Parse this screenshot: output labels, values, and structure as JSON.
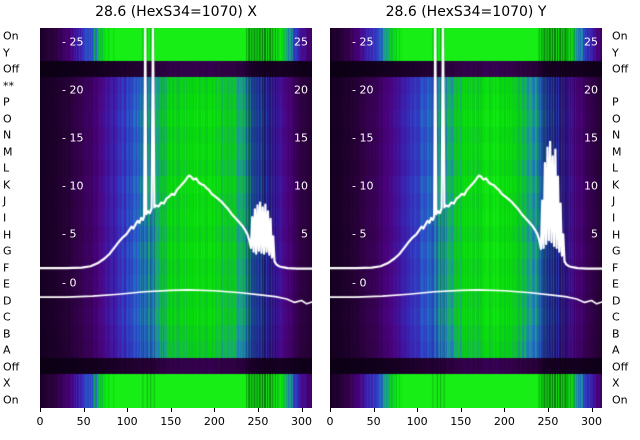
{
  "figure": {
    "bg": "#ffffff",
    "row_labels_left": [
      "On",
      "Y",
      "Off",
      "**",
      "P",
      "O",
      "N",
      "M",
      "L",
      "K",
      "J",
      "I",
      "H",
      "G",
      "F",
      "E",
      "D",
      "C",
      "B",
      "A",
      "Off",
      "X",
      "On"
    ],
    "row_labels_right": [
      "On",
      "Y",
      "Off",
      "",
      "P",
      "O",
      "N",
      "M",
      "L",
      "K",
      "J",
      "I",
      "H",
      "G",
      "F",
      "E",
      "D",
      "C",
      "B",
      "A",
      "Off",
      "X",
      "On"
    ]
  },
  "axis": {
    "x_ticks": [
      0,
      50,
      100,
      150,
      200,
      250,
      300
    ],
    "x_span": 312,
    "y_ticks_left": [
      25,
      20,
      15,
      10,
      5,
      0
    ],
    "y_ticks_right": [
      25,
      20,
      15,
      10,
      5
    ],
    "y_top": 26.4,
    "y_bottom": -13.0,
    "tick_prefix": "- "
  },
  "style": {
    "curve_color": "#ffffff",
    "text_color": "#000000",
    "colormap": [
      [
        0,
        "#0a0012"
      ],
      [
        0.1,
        "#2d0140"
      ],
      [
        0.2,
        "#4a027e"
      ],
      [
        0.3,
        "#3c1fae"
      ],
      [
        0.42,
        "#2b49c8"
      ],
      [
        0.52,
        "#2277c0"
      ],
      [
        0.6,
        "#18a878"
      ],
      [
        0.68,
        "#10c030"
      ],
      [
        0.78,
        "#06d80a"
      ],
      [
        1,
        "#16ee16"
      ]
    ],
    "bright_rows": [
      0,
      1,
      21,
      22
    ],
    "dark_rows": [
      2,
      20
    ],
    "row_factors": [
      1,
      1,
      1,
      0.96,
      1.0,
      1.04,
      0.98,
      1.02,
      0.97,
      1.05,
      1.0,
      1.03,
      0.98,
      1.04,
      0.99,
      1.02,
      0.96,
      1.0,
      0.94,
      0.9,
      1,
      1,
      1
    ],
    "intensity_profile": [
      [
        0,
        0.03
      ],
      [
        15,
        0.05
      ],
      [
        30,
        0.08
      ],
      [
        45,
        0.12
      ],
      [
        60,
        0.17
      ],
      [
        75,
        0.24
      ],
      [
        90,
        0.32
      ],
      [
        105,
        0.42
      ],
      [
        120,
        0.52
      ],
      [
        135,
        0.62
      ],
      [
        150,
        0.72
      ],
      [
        165,
        0.8
      ],
      [
        180,
        0.84
      ],
      [
        195,
        0.82
      ],
      [
        210,
        0.74
      ],
      [
        225,
        0.64
      ],
      [
        240,
        0.52
      ],
      [
        255,
        0.4
      ],
      [
        268,
        0.3
      ],
      [
        280,
        0.22
      ],
      [
        292,
        0.15
      ],
      [
        302,
        0.1
      ],
      [
        312,
        0.07
      ]
    ]
  },
  "chart_data": [
    {
      "type": "heatmap+line",
      "title": "28.6 (HexS34=1070) X",
      "xlabel_ticks": [
        0,
        50,
        100,
        150,
        200,
        250,
        300
      ],
      "ylim": [
        -13.0,
        26.4
      ],
      "profile": [
        [
          0,
          1.5
        ],
        [
          30,
          1.5
        ],
        [
          48,
          1.55
        ],
        [
          58,
          1.7
        ],
        [
          66,
          2.0
        ],
        [
          74,
          2.5
        ],
        [
          80,
          3.0
        ],
        [
          86,
          3.7
        ],
        [
          91,
          4.3
        ],
        [
          95,
          4.7
        ],
        [
          99,
          5.0
        ],
        [
          102,
          5.4
        ],
        [
          105,
          5.8
        ],
        [
          107,
          5.6
        ],
        [
          110,
          6.1
        ],
        [
          112,
          6.4
        ],
        [
          114,
          6.2
        ],
        [
          116,
          6.7
        ],
        [
          118,
          6.5
        ],
        [
          119.5,
          6.9
        ],
        [
          120.7,
          26.9
        ],
        [
          122,
          7.1
        ],
        [
          124,
          7.4
        ],
        [
          126,
          7.2
        ],
        [
          128,
          7.7
        ],
        [
          129.6,
          26.3
        ],
        [
          131.2,
          7.8
        ],
        [
          133,
          8.0
        ],
        [
          136,
          7.9
        ],
        [
          139,
          8.3
        ],
        [
          142,
          8.2
        ],
        [
          145,
          8.7
        ],
        [
          148,
          8.9
        ],
        [
          151,
          9.2
        ],
        [
          154,
          9.1
        ],
        [
          157,
          9.6
        ],
        [
          160,
          9.9
        ],
        [
          163,
          10.2
        ],
        [
          166,
          10.5
        ],
        [
          169,
          10.9
        ],
        [
          171,
          11.1
        ],
        [
          173,
          11.0
        ],
        [
          176,
          10.7
        ],
        [
          179,
          10.8
        ],
        [
          182,
          10.4
        ],
        [
          185,
          10.2
        ],
        [
          188,
          10.1
        ],
        [
          191,
          9.8
        ],
        [
          194,
          9.6
        ],
        [
          197,
          9.2
        ],
        [
          200,
          9.0
        ],
        [
          204,
          8.7
        ],
        [
          208,
          8.4
        ],
        [
          212,
          8.0
        ],
        [
          216,
          7.6
        ],
        [
          220,
          7.1
        ],
        [
          224,
          6.7
        ],
        [
          228,
          6.3
        ],
        [
          232,
          5.9
        ],
        [
          235,
          5.5
        ],
        [
          238,
          5.0
        ],
        [
          240,
          4.4
        ],
        [
          242,
          3.6
        ],
        [
          243.5,
          6.8
        ],
        [
          245,
          3.2
        ],
        [
          246.5,
          7.6
        ],
        [
          248,
          3.0
        ],
        [
          249.5,
          8.0
        ],
        [
          251,
          3.3
        ],
        [
          252.5,
          8.3
        ],
        [
          254,
          3.1
        ],
        [
          255.5,
          7.8
        ],
        [
          257,
          3.0
        ],
        [
          258.5,
          8.1
        ],
        [
          260,
          3.2
        ],
        [
          261.5,
          7.4
        ],
        [
          263,
          2.9
        ],
        [
          264.5,
          6.6
        ],
        [
          266,
          2.6
        ],
        [
          267.5,
          4.8
        ],
        [
          269,
          2.2
        ],
        [
          271,
          1.9
        ],
        [
          274,
          1.7
        ],
        [
          278,
          1.6
        ],
        [
          284,
          1.5
        ],
        [
          295,
          1.45
        ],
        [
          312,
          1.45
        ]
      ],
      "baseline": [
        [
          0,
          -1.5
        ],
        [
          30,
          -1.5
        ],
        [
          60,
          -1.4
        ],
        [
          90,
          -1.2
        ],
        [
          120,
          -0.95
        ],
        [
          150,
          -0.8
        ],
        [
          170,
          -0.75
        ],
        [
          200,
          -0.85
        ],
        [
          230,
          -1.05
        ],
        [
          255,
          -1.3
        ],
        [
          270,
          -1.45
        ],
        [
          283,
          -1.7
        ],
        [
          292,
          -2.05
        ],
        [
          300,
          -1.85
        ],
        [
          306,
          -2.2
        ],
        [
          312,
          -2.0
        ]
      ],
      "stripes": [
        [
          118,
          1,
          0.2
        ],
        [
          123,
          1,
          0.28
        ],
        [
          127,
          1,
          0.3
        ],
        [
          131,
          1,
          0.25
        ],
        [
          237,
          1,
          0.3
        ],
        [
          240,
          2,
          0.45
        ],
        [
          243,
          1,
          0.55
        ],
        [
          246,
          2,
          0.4
        ],
        [
          249,
          1,
          0.6
        ],
        [
          252,
          2,
          0.45
        ],
        [
          255,
          1,
          0.65
        ],
        [
          258,
          2,
          0.5
        ],
        [
          261,
          1,
          0.55
        ],
        [
          264,
          2,
          0.45
        ],
        [
          267,
          1,
          0.5
        ],
        [
          270,
          1,
          0.38
        ],
        [
          273,
          1,
          0.28
        ]
      ]
    },
    {
      "type": "heatmap+line",
      "title": "28.6 (HexS34=1070) Y",
      "xlabel_ticks": [
        0,
        50,
        100,
        150,
        200,
        250,
        300
      ],
      "ylim": [
        -13.0,
        26.4
      ],
      "profile": [
        [
          0,
          1.5
        ],
        [
          30,
          1.5
        ],
        [
          48,
          1.55
        ],
        [
          58,
          1.7
        ],
        [
          66,
          2.0
        ],
        [
          74,
          2.5
        ],
        [
          80,
          3.0
        ],
        [
          86,
          3.7
        ],
        [
          91,
          4.3
        ],
        [
          95,
          4.7
        ],
        [
          99,
          5.0
        ],
        [
          102,
          5.4
        ],
        [
          105,
          5.8
        ],
        [
          107,
          5.6
        ],
        [
          110,
          6.1
        ],
        [
          112,
          6.4
        ],
        [
          114,
          6.2
        ],
        [
          116,
          6.7
        ],
        [
          118,
          6.5
        ],
        [
          119.5,
          6.9
        ],
        [
          120.7,
          27.0
        ],
        [
          122,
          7.1
        ],
        [
          124,
          7.4
        ],
        [
          126,
          7.2
        ],
        [
          128,
          7.7
        ],
        [
          129.6,
          26.6
        ],
        [
          131.2,
          7.8
        ],
        [
          133,
          8.0
        ],
        [
          136,
          7.9
        ],
        [
          139,
          8.3
        ],
        [
          142,
          8.2
        ],
        [
          145,
          8.7
        ],
        [
          148,
          8.9
        ],
        [
          151,
          9.2
        ],
        [
          154,
          9.1
        ],
        [
          157,
          9.6
        ],
        [
          160,
          9.9
        ],
        [
          163,
          10.2
        ],
        [
          166,
          10.5
        ],
        [
          169,
          10.9
        ],
        [
          171,
          11.1
        ],
        [
          173,
          11.0
        ],
        [
          176,
          10.7
        ],
        [
          179,
          10.8
        ],
        [
          182,
          10.4
        ],
        [
          185,
          10.2
        ],
        [
          188,
          10.1
        ],
        [
          191,
          9.8
        ],
        [
          194,
          9.6
        ],
        [
          197,
          9.2
        ],
        [
          200,
          9.0
        ],
        [
          204,
          8.7
        ],
        [
          208,
          8.4
        ],
        [
          212,
          8.0
        ],
        [
          216,
          7.6
        ],
        [
          220,
          7.1
        ],
        [
          224,
          6.7
        ],
        [
          228,
          6.3
        ],
        [
          232,
          5.9
        ],
        [
          235,
          5.5
        ],
        [
          238,
          5.0
        ],
        [
          240,
          4.4
        ],
        [
          242,
          3.5
        ],
        [
          243.5,
          8.5
        ],
        [
          245,
          3.6
        ],
        [
          246.5,
          12.4
        ],
        [
          248,
          4.0
        ],
        [
          249.5,
          14.0
        ],
        [
          251,
          4.4
        ],
        [
          252.5,
          14.6
        ],
        [
          254,
          4.2
        ],
        [
          255.5,
          13.1
        ],
        [
          257,
          3.8
        ],
        [
          258.5,
          13.8
        ],
        [
          260,
          3.6
        ],
        [
          261.5,
          11.0
        ],
        [
          263,
          3.2
        ],
        [
          264.5,
          8.2
        ],
        [
          266,
          2.8
        ],
        [
          267.5,
          5.0
        ],
        [
          269,
          2.2
        ],
        [
          271,
          1.9
        ],
        [
          274,
          1.7
        ],
        [
          278,
          1.6
        ],
        [
          284,
          1.5
        ],
        [
          295,
          1.45
        ],
        [
          312,
          1.45
        ]
      ],
      "baseline": [
        [
          0,
          -1.5
        ],
        [
          30,
          -1.5
        ],
        [
          60,
          -1.4
        ],
        [
          90,
          -1.2
        ],
        [
          120,
          -0.95
        ],
        [
          150,
          -0.8
        ],
        [
          170,
          -0.75
        ],
        [
          200,
          -0.85
        ],
        [
          230,
          -1.05
        ],
        [
          255,
          -1.3
        ],
        [
          270,
          -1.45
        ],
        [
          283,
          -1.7
        ],
        [
          292,
          -2.05
        ],
        [
          300,
          -1.85
        ],
        [
          306,
          -2.2
        ],
        [
          312,
          -2.0
        ]
      ],
      "stripes": [
        [
          118,
          1,
          0.2
        ],
        [
          123,
          1,
          0.28
        ],
        [
          127,
          1,
          0.3
        ],
        [
          131,
          1,
          0.25
        ],
        [
          240,
          1,
          0.35
        ],
        [
          243,
          1,
          0.5
        ],
        [
          246,
          2,
          0.45
        ],
        [
          249,
          1,
          0.6
        ],
        [
          252,
          2,
          0.5
        ],
        [
          255,
          1,
          0.65
        ],
        [
          258,
          2,
          0.5
        ],
        [
          261,
          1,
          0.6
        ],
        [
          264,
          2,
          0.5
        ],
        [
          267,
          1,
          0.55
        ],
        [
          270,
          2,
          0.45
        ],
        [
          273,
          1,
          0.4
        ],
        [
          276,
          1,
          0.3
        ],
        [
          280,
          1,
          0.25
        ]
      ]
    }
  ]
}
